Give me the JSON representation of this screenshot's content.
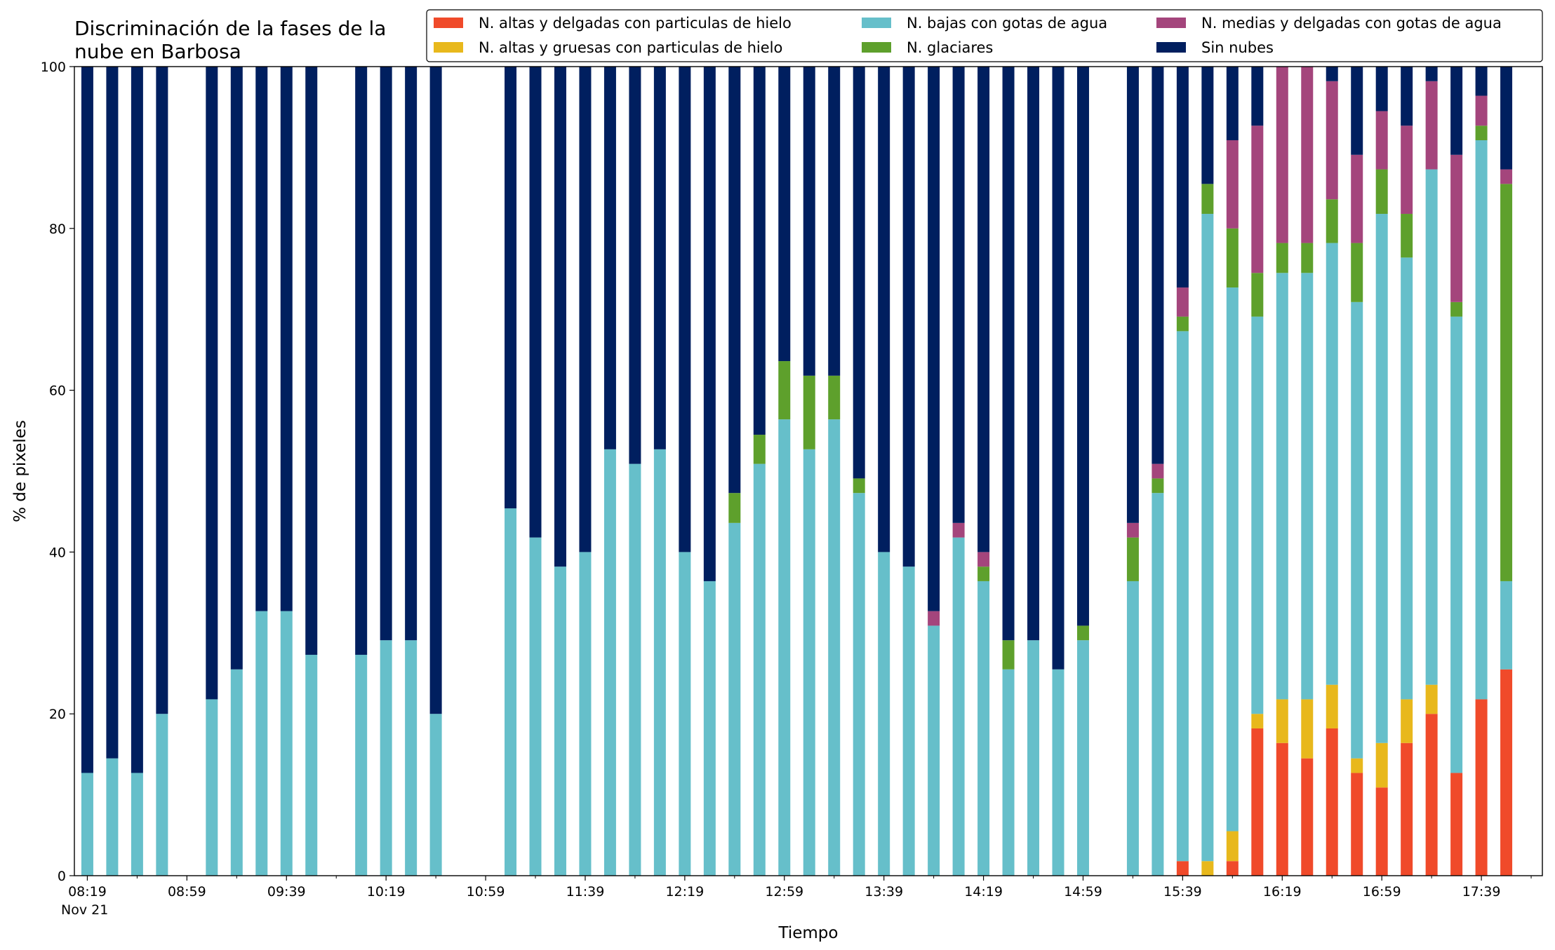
{
  "chart_data": {
    "type": "stacked-bar",
    "title": [
      "Discriminación de la fases de la",
      "nube en Barbosa"
    ],
    "xlabel": "Tiempo",
    "ylabel": "% de pixeles",
    "x_sublabel": "Nov 21",
    "categories": [
      "08:19",
      null,
      null,
      null,
      "08:59",
      null,
      null,
      null,
      "09:39",
      null,
      null,
      null,
      "10:19",
      null,
      null,
      null,
      "10:59",
      null,
      null,
      null,
      "11:39",
      null,
      null,
      null,
      "12:19",
      null,
      null,
      null,
      "12:59",
      null,
      null,
      null,
      "13:39",
      null,
      null,
      null,
      "14:19",
      null,
      null,
      null,
      "14:59",
      null,
      null,
      null,
      "15:39",
      null,
      null,
      null,
      "16:19",
      null,
      null,
      null,
      "16:59",
      null,
      null,
      null,
      "17:39",
      null
    ],
    "ylim": [
      0,
      100
    ],
    "yticks": [
      0,
      20,
      40,
      60,
      80,
      100
    ],
    "legend": "upper right",
    "series": [
      {
        "name": "N. altas y delgadas con particulas de hielo",
        "color": "#f04a2a",
        "values": [
          0,
          0,
          0,
          0,
          null,
          0,
          0,
          0,
          0,
          0,
          null,
          0,
          0,
          0,
          0,
          null,
          null,
          0,
          0,
          0,
          0,
          0,
          0,
          0,
          0,
          0,
          0,
          0,
          0,
          0,
          0,
          0,
          0,
          0,
          0,
          0,
          0,
          0,
          0,
          0,
          0,
          null,
          0,
          0,
          1.8,
          0,
          1.8,
          18.2,
          16.4,
          14.5,
          18.2,
          12.7,
          10.9,
          16.4,
          20,
          12.7,
          21.8,
          25.5
        ]
      },
      {
        "name": "N. altas y gruesas con particulas de hielo",
        "color": "#e8b81c",
        "values": [
          0,
          0,
          0,
          0,
          null,
          0,
          0,
          0,
          0,
          0,
          null,
          0,
          0,
          0,
          0,
          null,
          null,
          0,
          0,
          0,
          0,
          0,
          0,
          0,
          0,
          0,
          0,
          0,
          0,
          0,
          0,
          0,
          0,
          0,
          0,
          0,
          0,
          0,
          0,
          0,
          0,
          null,
          0,
          0,
          0,
          1.8,
          3.7,
          1.8,
          5.4,
          7.3,
          5.4,
          1.8,
          5.5,
          5.4,
          3.6,
          0,
          0,
          0
        ]
      },
      {
        "name": "N. bajas con gotas de agua",
        "color": "#66bfca",
        "values": [
          12.7,
          14.5,
          12.7,
          20,
          null,
          21.8,
          25.5,
          32.7,
          32.7,
          27.3,
          null,
          27.3,
          29.1,
          29.1,
          20,
          null,
          null,
          45.4,
          41.8,
          38.2,
          40,
          52.7,
          50.9,
          52.7,
          40,
          36.4,
          43.6,
          50.9,
          56.4,
          52.7,
          56.4,
          47.3,
          40,
          38.2,
          30.9,
          41.8,
          36.4,
          25.5,
          29.1,
          25.5,
          29.1,
          null,
          36.4,
          47.3,
          65.5,
          80,
          67.2,
          49.1,
          52.7,
          52.7,
          54.6,
          56.4,
          65.4,
          54.6,
          63.7,
          56.4,
          69.1,
          10.9
        ]
      },
      {
        "name": "N. glaciares",
        "color": "#5ea02c",
        "values": [
          0,
          0,
          0,
          0,
          null,
          0,
          0,
          0,
          0,
          0,
          null,
          0,
          0,
          0,
          0,
          null,
          null,
          0,
          0,
          0,
          0,
          0,
          0,
          0,
          0,
          0,
          3.7,
          3.6,
          7.2,
          9.1,
          5.4,
          1.8,
          0,
          0,
          0,
          0,
          1.8,
          3.6,
          0,
          0,
          1.8,
          null,
          5.4,
          1.8,
          1.8,
          3.7,
          7.3,
          5.4,
          3.7,
          3.7,
          5.4,
          7.3,
          5.5,
          5.4,
          0,
          1.8,
          1.8,
          49.1
        ]
      },
      {
        "name": "N. medias y delgadas con gotas de agua",
        "color": "#a4457c",
        "values": [
          0,
          0,
          0,
          0,
          null,
          0,
          0,
          0,
          0,
          0,
          null,
          0,
          0,
          0,
          0,
          null,
          null,
          0,
          0,
          0,
          0,
          0,
          0,
          0,
          0,
          0,
          0,
          0,
          0,
          0,
          0,
          0,
          0,
          0,
          1.8,
          1.8,
          1.8,
          0,
          0,
          0,
          0,
          null,
          1.8,
          1.8,
          3.6,
          0,
          10.9,
          18.2,
          21.8,
          21.8,
          14.6,
          10.9,
          7.2,
          10.9,
          10.9,
          18.2,
          3.7,
          1.8
        ]
      },
      {
        "name": "Sin nubes",
        "color": "#001f5f",
        "values": [
          87.3,
          85.5,
          87.3,
          80,
          null,
          78.2,
          74.5,
          67.3,
          67.3,
          72.7,
          null,
          72.7,
          70.9,
          70.9,
          80,
          null,
          null,
          54.6,
          58.2,
          61.8,
          60,
          47.3,
          49.1,
          47.3,
          60,
          63.6,
          52.7,
          45.5,
          36.4,
          38.2,
          38.2,
          50.9,
          60,
          61.8,
          67.3,
          56.4,
          60,
          70.9,
          70.9,
          74.5,
          69.1,
          null,
          56.4,
          49.1,
          27.3,
          14.5,
          9.1,
          7.3,
          0,
          0,
          1.8,
          10.9,
          5.5,
          7.3,
          1.8,
          10.9,
          3.6,
          12.7
        ]
      }
    ]
  }
}
